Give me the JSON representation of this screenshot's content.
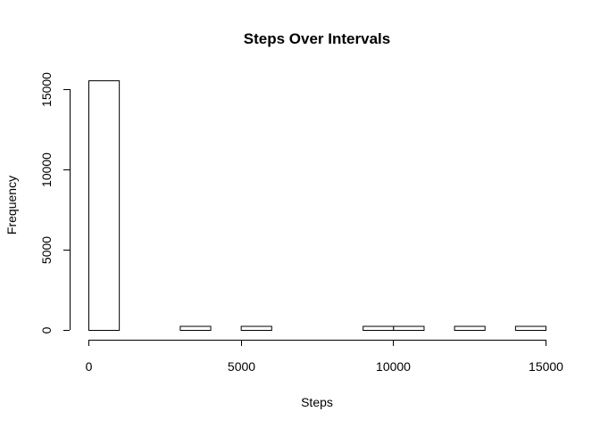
{
  "chart_data": {
    "type": "bar",
    "title": "Steps Over Intervals",
    "xlabel": "Steps",
    "ylabel": "Frequency",
    "xlim": [
      0,
      15000
    ],
    "ylim": [
      0,
      15700
    ],
    "x_ticks": [
      0,
      5000,
      10000,
      15000
    ],
    "y_ticks": [
      0,
      5000,
      10000,
      15000
    ],
    "grid": false,
    "bins": [
      {
        "start": 0,
        "end": 1000,
        "count": 15550
      },
      {
        "start": 1000,
        "end": 2000,
        "count": 0
      },
      {
        "start": 2000,
        "end": 3000,
        "count": 0
      },
      {
        "start": 3000,
        "end": 4000,
        "count": 250
      },
      {
        "start": 4000,
        "end": 5000,
        "count": 0
      },
      {
        "start": 5000,
        "end": 6000,
        "count": 250
      },
      {
        "start": 6000,
        "end": 7000,
        "count": 0
      },
      {
        "start": 7000,
        "end": 8000,
        "count": 0
      },
      {
        "start": 8000,
        "end": 9000,
        "count": 0
      },
      {
        "start": 9000,
        "end": 10000,
        "count": 250
      },
      {
        "start": 10000,
        "end": 11000,
        "count": 250
      },
      {
        "start": 11000,
        "end": 12000,
        "count": 0
      },
      {
        "start": 12000,
        "end": 13000,
        "count": 250
      },
      {
        "start": 13000,
        "end": 14000,
        "count": 0
      },
      {
        "start": 14000,
        "end": 15000,
        "count": 250
      }
    ]
  }
}
